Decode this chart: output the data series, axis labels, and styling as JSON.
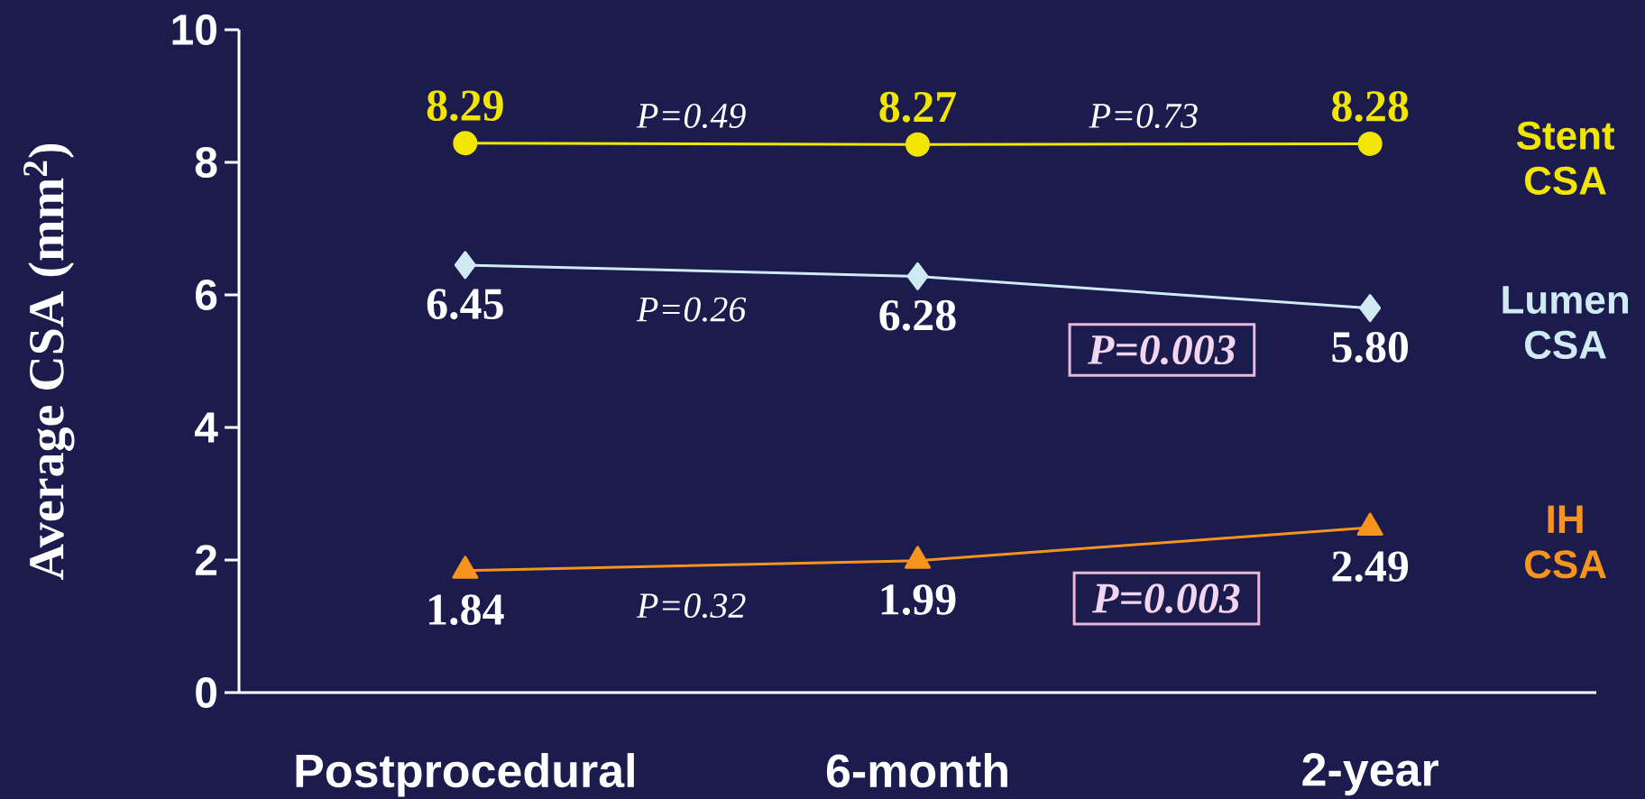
{
  "chart_data": {
    "type": "line",
    "ylabel": "Average CSA (mm$^{2}$)",
    "categories": [
      "Postprocedural",
      "6-month",
      "2-year"
    ],
    "series": [
      {
        "name": "Stent CSA",
        "color": "#f2e600",
        "marker": "circle",
        "values": [
          8.29,
          8.27,
          8.28
        ],
        "value_labels": [
          "8.29",
          "8.27",
          "8.28"
        ]
      },
      {
        "name": "Lumen CSA",
        "color": "#cfeaf2",
        "marker": "diamond",
        "values": [
          6.45,
          6.28,
          5.8
        ],
        "value_labels": [
          "6.45",
          "6.28",
          "5.80"
        ]
      },
      {
        "name": "IH CSA",
        "color": "#f7941d",
        "marker": "triangle",
        "values": [
          1.84,
          1.99,
          2.49
        ],
        "value_labels": [
          "1.84",
          "1.99",
          "2.49"
        ]
      }
    ],
    "ylim": [
      0,
      10
    ],
    "yticks": [
      0,
      2,
      4,
      6,
      8,
      10
    ],
    "annotations": [
      "P=0.49",
      "P=0.73",
      "P=0.26",
      "P=0.003",
      "P=0.32",
      "P=0.003"
    ]
  }
}
